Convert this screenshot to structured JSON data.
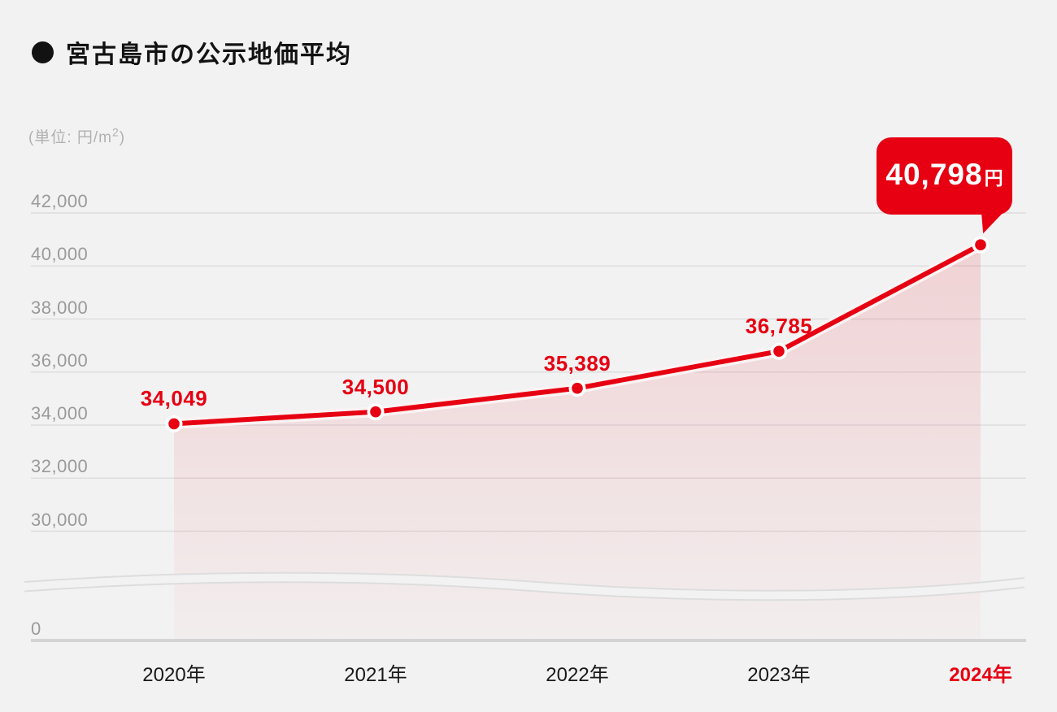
{
  "title": {
    "text": "宮古島市の公示地価平均"
  },
  "unit_label": {
    "prefix": "(単位: 円/m",
    "superscript": "2",
    "suffix": ")"
  },
  "colors": {
    "accent_red": "#e60012",
    "background": "#f2f2f2",
    "grid_line": "#dddddd",
    "baseline": "#d4d4d4",
    "tick_text": "#9a9a9a",
    "axis_text": "#1a1a1a",
    "area_top": "rgba(230,0,18,0.135)",
    "area_bottom": "rgba(230,0,18,0.02)",
    "line_halo": "#fbf3f3",
    "point_ring": "#ffffff",
    "badge_text": "#ffffff"
  },
  "chart_data": {
    "type": "area",
    "title": "宮古島市の公示地価平均",
    "unit": "円/m2",
    "categories": [
      "2020年",
      "2021年",
      "2022年",
      "2023年",
      "2024年"
    ],
    "values": [
      34049,
      34500,
      35389,
      36785,
      40798
    ],
    "value_labels": [
      "34,049",
      "34,500",
      "35,389",
      "36,785",
      "40,798"
    ],
    "highlight_category": "2024年",
    "callout": {
      "value": "40,798",
      "unit": "円"
    },
    "y_ticks": [
      {
        "label": "42,000",
        "value": 42000
      },
      {
        "label": "40,000",
        "value": 40000
      },
      {
        "label": "38,000",
        "value": 38000
      },
      {
        "label": "36,000",
        "value": 36000
      },
      {
        "label": "34,000",
        "value": 34000
      },
      {
        "label": "32,000",
        "value": 32000
      },
      {
        "label": "30,000",
        "value": 30000
      },
      {
        "label": "0",
        "value": 0
      }
    ],
    "axis_break": true,
    "grid": true,
    "legend": false,
    "ylim": [
      0,
      42000
    ]
  }
}
